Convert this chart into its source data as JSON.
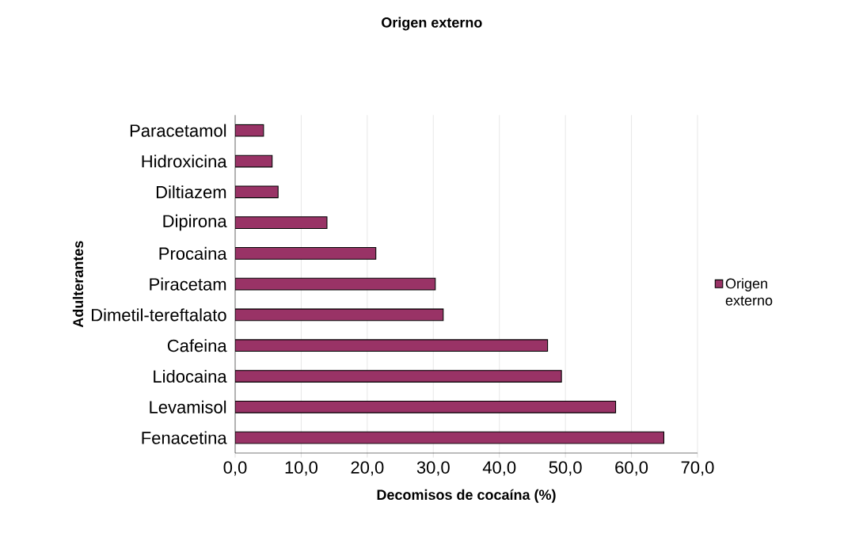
{
  "chart_data": {
    "type": "bar",
    "orientation": "horizontal",
    "title": "Origen externo",
    "xlabel": "Decomisos de cocaína (%)",
    "ylabel": "Adulterantes",
    "categories": [
      "Paracetamol",
      "Hidroxicina",
      "Diltiazem",
      "Dipirona",
      "Procaina",
      "Piracetam",
      "Dimetil-tereftalato",
      "Cafeina",
      "Lidocaina",
      "Levamisol",
      "Fenacetina"
    ],
    "series": [
      {
        "name": "Origen externo",
        "color": "#993366",
        "values": [
          4.3,
          5.6,
          6.5,
          13.9,
          21.3,
          30.3,
          31.5,
          47.3,
          49.4,
          57.6,
          64.9
        ]
      }
    ],
    "xlim": [
      0,
      70
    ],
    "xticks": [
      {
        "value": 0,
        "label": "0,0"
      },
      {
        "value": 10,
        "label": "10,0"
      },
      {
        "value": 20,
        "label": "20,0"
      },
      {
        "value": 30,
        "label": "30,0"
      },
      {
        "value": 40,
        "label": "40,0"
      },
      {
        "value": 50,
        "label": "50,0"
      },
      {
        "value": 60,
        "label": "60,0"
      },
      {
        "value": 70,
        "label": "70,0"
      }
    ],
    "grid": "x",
    "legend": "right"
  }
}
